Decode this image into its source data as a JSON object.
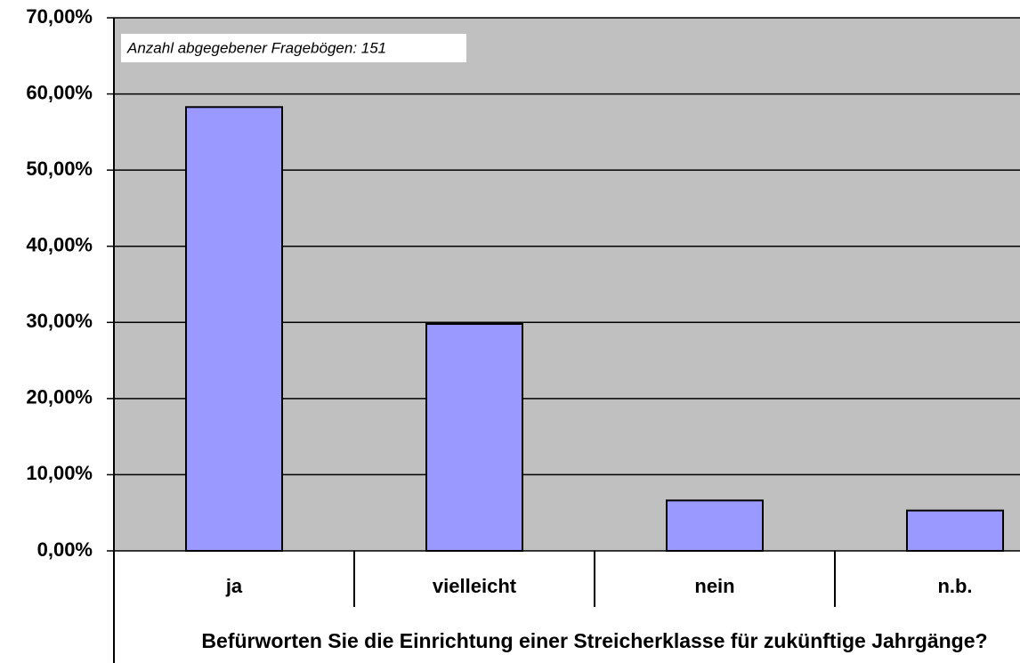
{
  "chart_data": {
    "type": "bar",
    "categories": [
      "ja",
      "vielleicht",
      "nein",
      "n.b."
    ],
    "values": [
      58.28,
      29.8,
      6.62,
      5.3
    ],
    "color": "#9999ff",
    "ylim": [
      0,
      70
    ],
    "yticks": [
      {
        "value": 0,
        "label": "0,00%"
      },
      {
        "value": 10,
        "label": "10,00%"
      },
      {
        "value": 20,
        "label": "20,00%"
      },
      {
        "value": 30,
        "label": "30,00%"
      },
      {
        "value": 40,
        "label": "40,00%"
      },
      {
        "value": 50,
        "label": "50,00%"
      },
      {
        "value": 60,
        "label": "60,00%"
      },
      {
        "value": 70,
        "label": "70,00%"
      }
    ],
    "grid": true,
    "annotation": "Anzahl abgegebener Fragebögen: 151",
    "x_label": "Befürworten Sie die Einrichtung einer Streicherklasse für zukünftige Jahrgänge?"
  }
}
